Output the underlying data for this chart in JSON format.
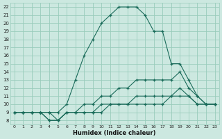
{
  "xlabel": "Humidex (Indice chaleur)",
  "background_color": "#cce8e0",
  "grid_color": "#99ccbb",
  "line_color": "#1a6b5a",
  "xlim": [
    -0.5,
    23.5
  ],
  "ylim": [
    7.5,
    22.5
  ],
  "xticks": [
    0,
    1,
    2,
    3,
    4,
    5,
    6,
    7,
    8,
    9,
    10,
    11,
    12,
    13,
    14,
    15,
    16,
    17,
    18,
    19,
    20,
    21,
    22,
    23
  ],
  "yticks": [
    8,
    9,
    10,
    11,
    12,
    13,
    14,
    15,
    16,
    17,
    18,
    19,
    20,
    21,
    22
  ],
  "series": [
    {
      "x": [
        0,
        1,
        2,
        3,
        4,
        5,
        6,
        7,
        8,
        9,
        10,
        11,
        12,
        13,
        14,
        15,
        16,
        17,
        18,
        19,
        20,
        21,
        22,
        23
      ],
      "y": [
        9,
        9,
        9,
        9,
        9,
        9,
        10,
        13,
        16,
        18,
        20,
        21,
        22,
        22,
        22,
        21,
        19,
        19,
        15,
        15,
        13,
        11,
        10,
        10
      ]
    },
    {
      "x": [
        0,
        1,
        2,
        3,
        4,
        5,
        6,
        7,
        8,
        9,
        10,
        11,
        12,
        13,
        14,
        15,
        16,
        17,
        18,
        19,
        20,
        21,
        22,
        23
      ],
      "y": [
        9,
        9,
        9,
        9,
        8,
        8,
        9,
        9,
        10,
        10,
        11,
        11,
        12,
        12,
        13,
        13,
        13,
        13,
        13,
        14,
        12,
        11,
        10,
        10
      ]
    },
    {
      "x": [
        0,
        1,
        2,
        3,
        4,
        5,
        6,
        7,
        8,
        9,
        10,
        11,
        12,
        13,
        14,
        15,
        16,
        17,
        18,
        19,
        20,
        21,
        22,
        23
      ],
      "y": [
        9,
        9,
        9,
        9,
        8,
        8,
        9,
        9,
        9,
        9,
        10,
        10,
        10,
        10,
        11,
        11,
        11,
        11,
        11,
        12,
        11,
        10,
        10,
        10
      ]
    },
    {
      "x": [
        0,
        1,
        2,
        3,
        4,
        5,
        6,
        7,
        8,
        9,
        10,
        11,
        12,
        13,
        14,
        15,
        16,
        17,
        18,
        19,
        20,
        21,
        22,
        23
      ],
      "y": [
        9,
        9,
        9,
        9,
        9,
        8,
        9,
        9,
        9,
        9,
        9,
        10,
        10,
        10,
        10,
        10,
        10,
        10,
        11,
        11,
        11,
        10,
        10,
        10
      ]
    }
  ]
}
